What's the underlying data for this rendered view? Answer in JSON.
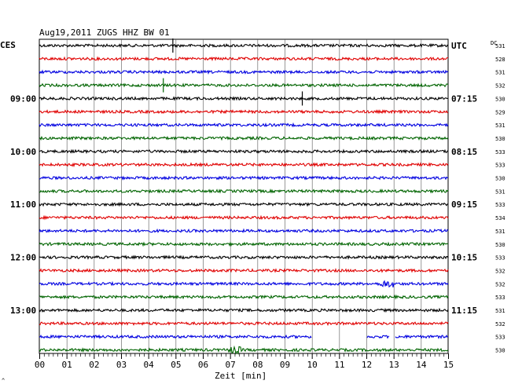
{
  "chart_data": {
    "type": "line",
    "title": "Aug19,2011   ZUGS HHZ BW 01",
    "left_axis_label": "CES",
    "right_axis_label": "UTC",
    "dc_label": "DC",
    "xlabel": "Zeit [min]",
    "xlim": [
      0,
      15
    ],
    "x_ticks": [
      "00",
      "01",
      "02",
      "03",
      "04",
      "05",
      "06",
      "07",
      "08",
      "09",
      "10",
      "11",
      "12",
      "13",
      "14",
      "15"
    ],
    "trace_count": 24,
    "trace_colors": [
      "#000000",
      "#e00000",
      "#0000e0",
      "#006400"
    ],
    "left_time_labels": [
      {
        "trace": 4,
        "text": "09:00"
      },
      {
        "trace": 8,
        "text": "10:00"
      },
      {
        "trace": 12,
        "text": "11:00"
      },
      {
        "trace": 16,
        "text": "12:00"
      },
      {
        "trace": 20,
        "text": "13:00"
      }
    ],
    "right_time_labels": [
      {
        "trace": 0,
        "text": "UTC"
      },
      {
        "trace": 4,
        "text": "07:15"
      },
      {
        "trace": 8,
        "text": "08:15"
      },
      {
        "trace": 12,
        "text": "09:15"
      },
      {
        "trace": 16,
        "text": "10:15"
      },
      {
        "trace": 20,
        "text": "11:15"
      }
    ],
    "dc_values": [
      "531",
      "528",
      "531",
      "532",
      "530",
      "529",
      "531",
      "530",
      "533",
      "533",
      "530",
      "531",
      "533",
      "534",
      "531",
      "530",
      "533",
      "532",
      "532",
      "533",
      "531",
      "532",
      "533",
      "530"
    ],
    "gaps": [
      {
        "trace": 22,
        "from": 10.0,
        "to": 12.0
      },
      {
        "trace": 22,
        "from": 12.85,
        "to": 13.05
      }
    ],
    "events": [
      {
        "trace": 0,
        "x": 4.9,
        "type": "spike"
      },
      {
        "trace": 3,
        "x": 4.55,
        "type": "spike"
      },
      {
        "trace": 4,
        "x": 9.65,
        "type": "spike"
      },
      {
        "trace": 18,
        "x": 12.75,
        "type": "burst"
      },
      {
        "trace": 23,
        "x": 7.2,
        "type": "burst"
      }
    ],
    "grid": "vertical"
  },
  "corner_mark": "^"
}
